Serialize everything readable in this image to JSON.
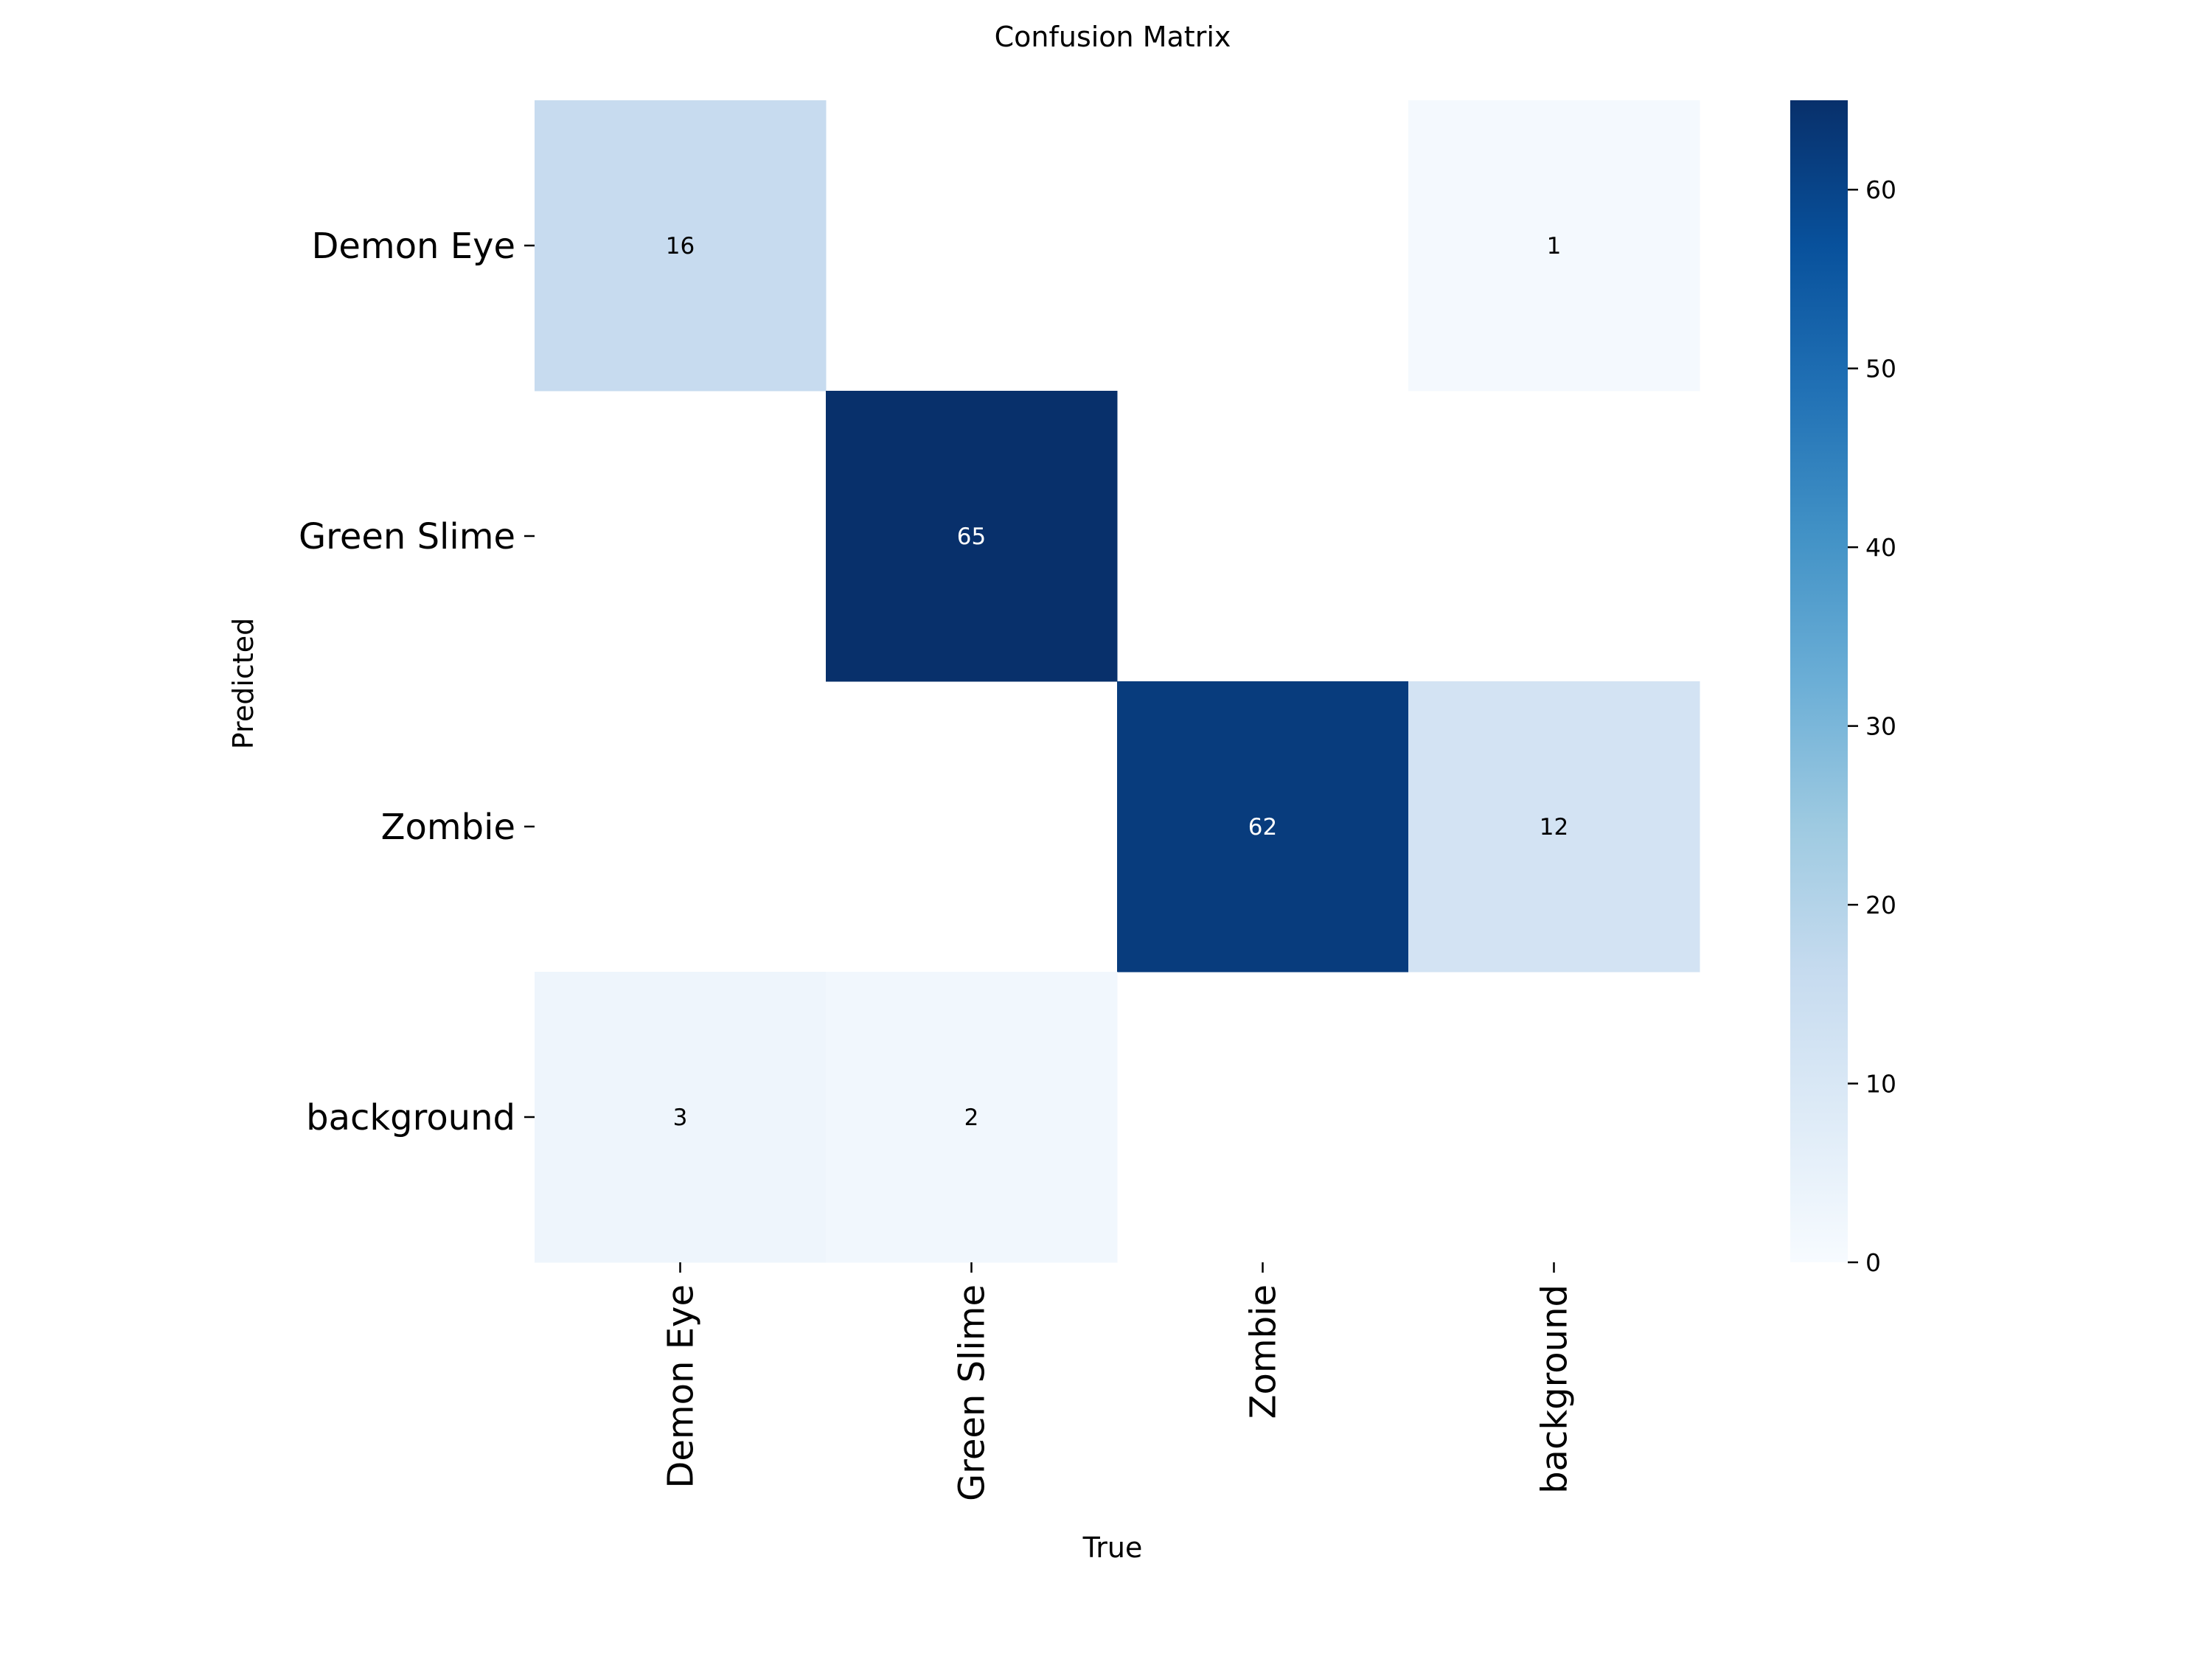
{
  "chart_data": {
    "type": "heatmap",
    "title": "Confusion Matrix",
    "xlabel": "True",
    "ylabel": "Predicted",
    "x_categories": [
      "Demon Eye",
      "Green Slime",
      "Zombie",
      "background"
    ],
    "y_categories": [
      "Demon Eye",
      "Green Slime",
      "Zombie",
      "background"
    ],
    "values": [
      [
        16,
        null,
        null,
        1
      ],
      [
        null,
        65,
        null,
        null
      ],
      [
        null,
        null,
        62,
        12
      ],
      [
        3,
        2,
        null,
        null
      ]
    ],
    "colormap": "Blues",
    "colorbar": {
      "min": 0,
      "max": 65,
      "ticks": [
        0,
        10,
        20,
        30,
        40,
        50,
        60
      ]
    },
    "grid": false
  }
}
